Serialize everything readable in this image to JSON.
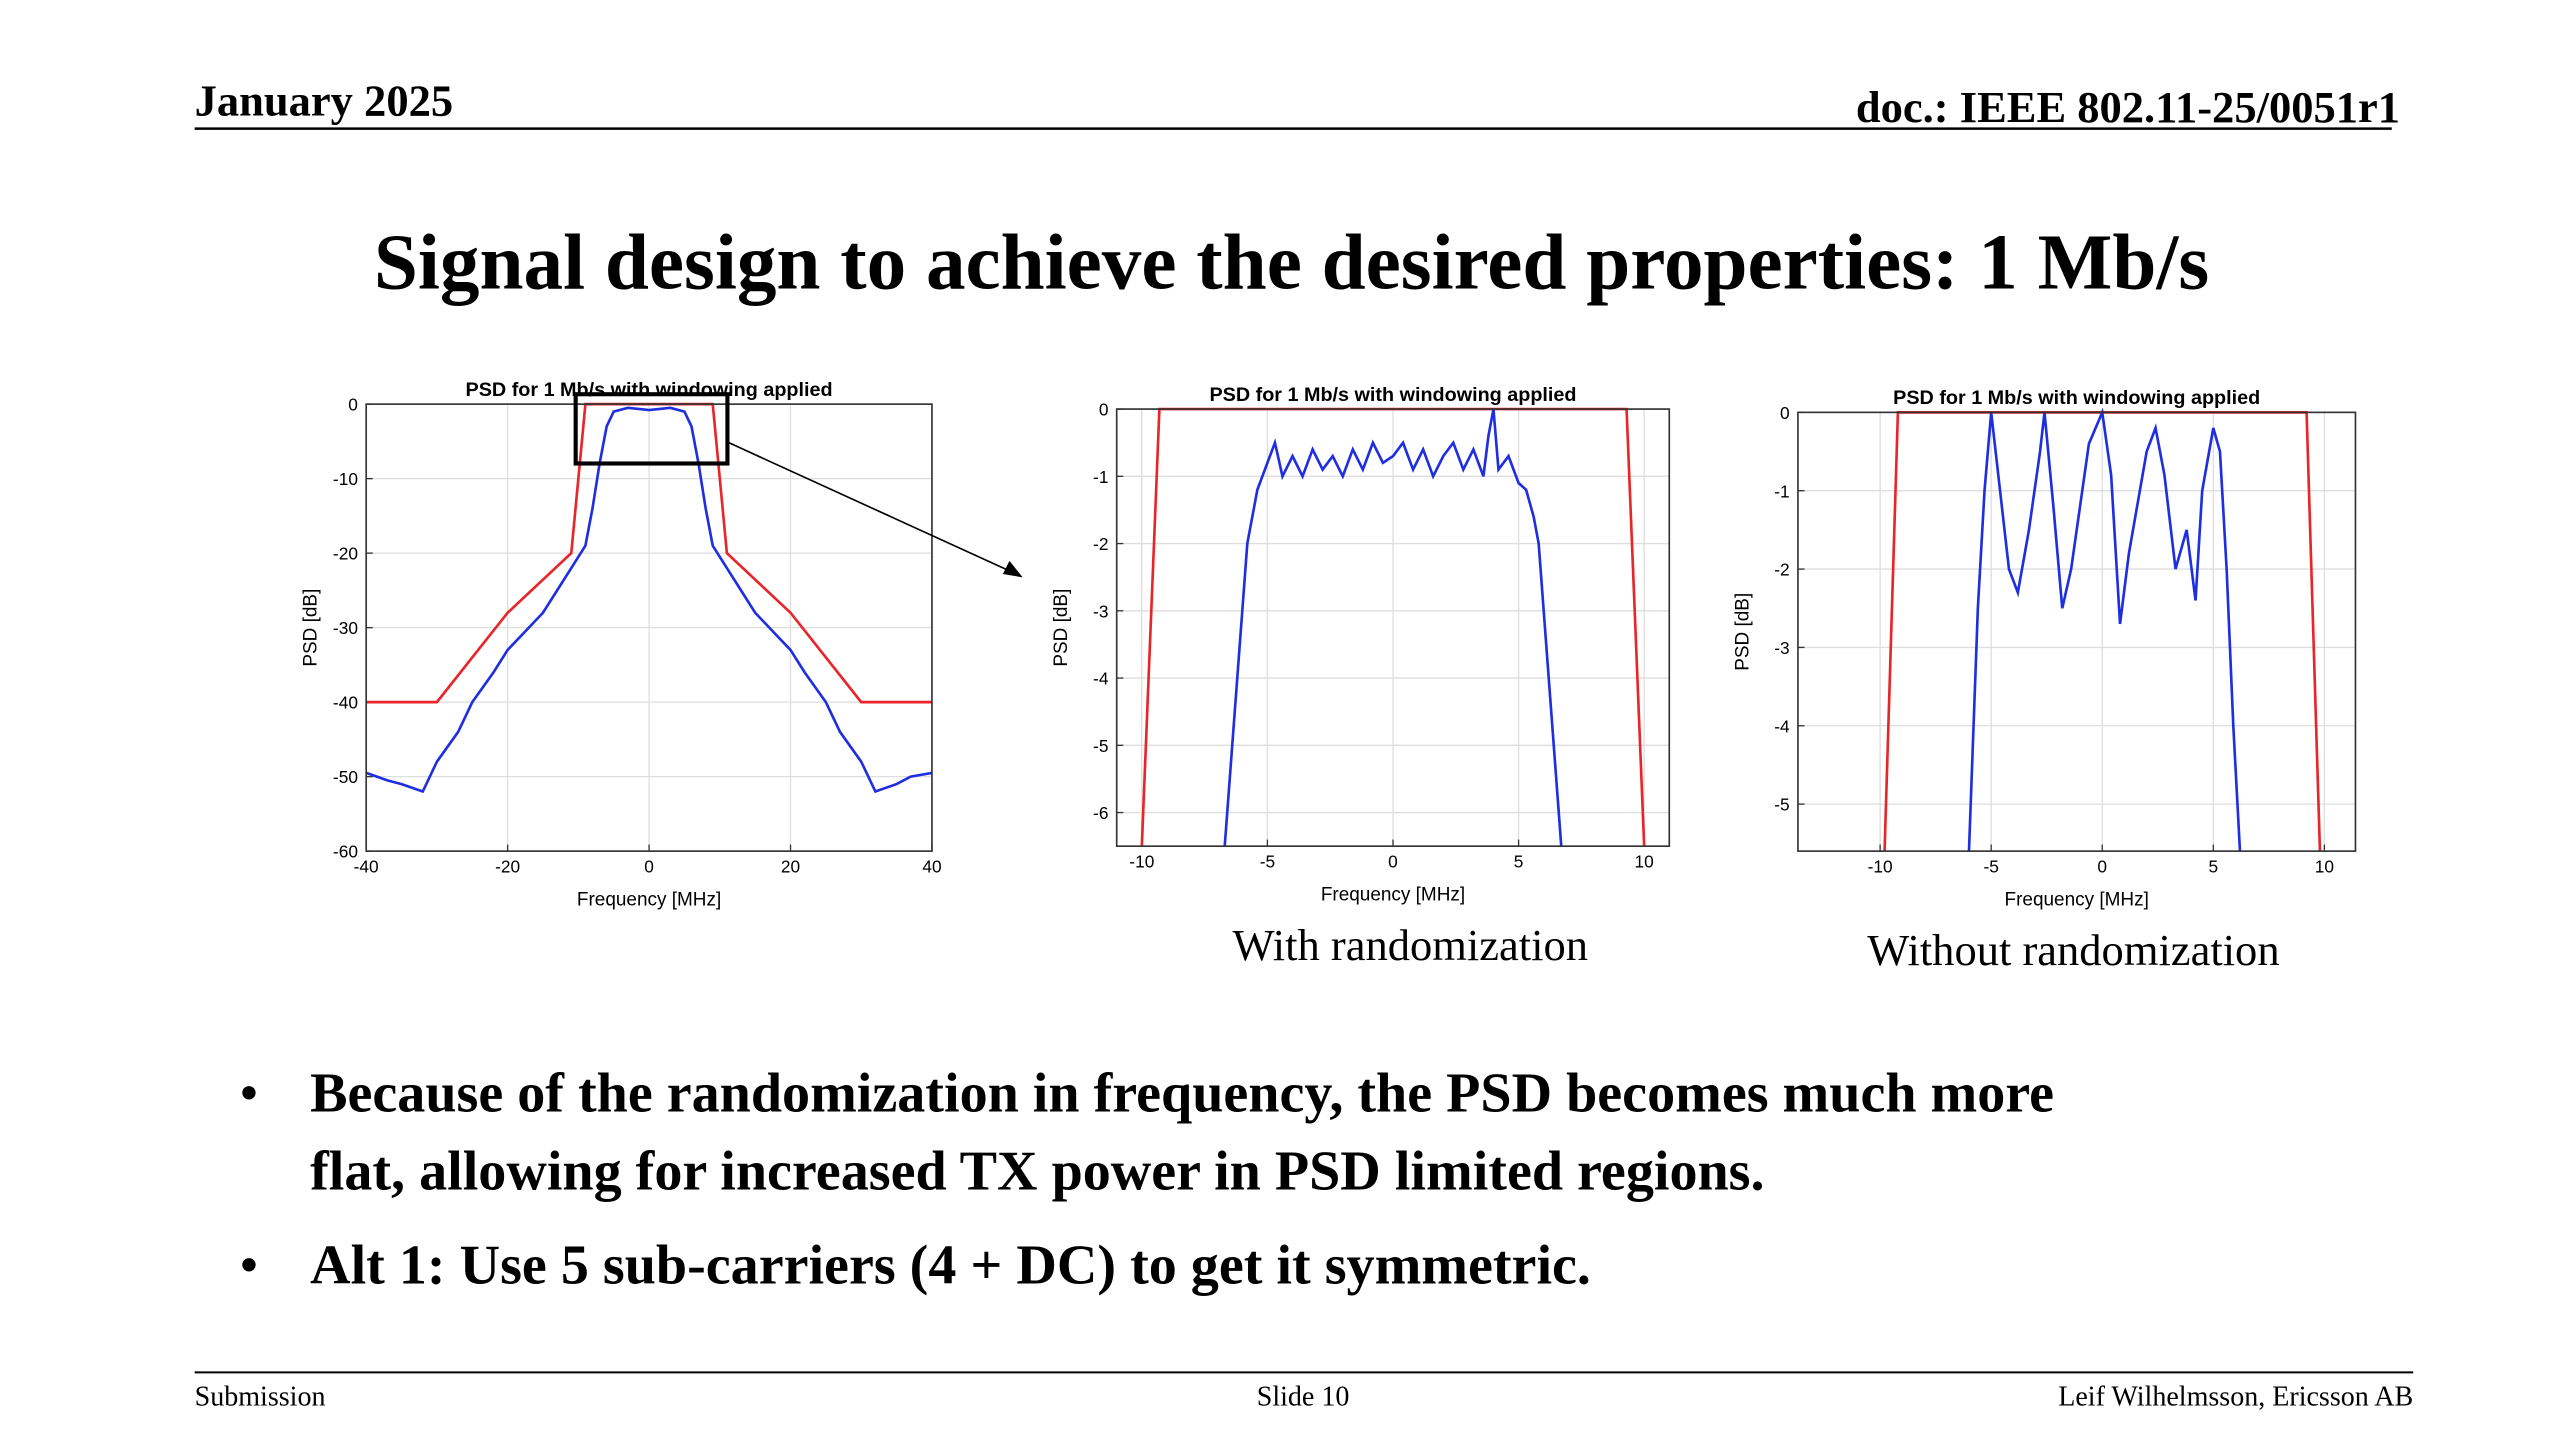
{
  "header": {
    "date": "January 2025",
    "doc": "doc.: IEEE 802.11-25/0051r1"
  },
  "title": "Signal design to achieve the desired properties: 1 Mb/s",
  "captions": [
    "With randomization",
    "Without randomization"
  ],
  "bullets": [
    [
      "Because of the randomization in frequency, the PSD becomes much more",
      "flat, allowing for increased TX power in PSD limited regions."
    ],
    [
      "Alt 1: Use 5 sub-carriers (4 + DC) to get it symmetric."
    ]
  ],
  "footer": {
    "left": "Submission",
    "center": "Slide 10",
    "right": "Leif Wilhelmsson, Ericsson AB"
  },
  "chart_data": [
    {
      "type": "line",
      "title": "PSD for 1 Mb/s with windowing applied",
      "x_label": "Frequency [MHz]",
      "y_label": "PSD [dB]",
      "xlim": [
        -40,
        40
      ],
      "ylim": [
        -60,
        0
      ],
      "xticks": [
        -40,
        -20,
        0,
        20,
        40
      ],
      "yticks": [
        -60,
        -50,
        -40,
        -30,
        -20,
        -10,
        0
      ],
      "grid": true,
      "series": [
        {
          "color": "#e8262a",
          "x": [
            -40,
            -30,
            -20,
            -11,
            -9,
            9,
            11,
            20,
            30,
            40
          ],
          "values": [
            -40,
            -40,
            -28,
            -20,
            0,
            0,
            -20,
            -28,
            -40,
            -40
          ]
        },
        {
          "color": "#1f2ee0",
          "x": [
            -40,
            -37,
            -35,
            -32,
            -30,
            -27,
            -25,
            -22,
            -20,
            -17,
            -15,
            -13,
            -11,
            -9,
            -8,
            -7,
            -6,
            -5,
            -3,
            0,
            3,
            5,
            6,
            7,
            8,
            9,
            11,
            13,
            15,
            17,
            20,
            22,
            25,
            27,
            30,
            32,
            35,
            37,
            40
          ],
          "values": [
            -49.5,
            -50.5,
            -51,
            -52,
            -48,
            -44,
            -40,
            -36,
            -33,
            -30,
            -28,
            -25,
            -22,
            -19,
            -14,
            -8,
            -3,
            -1,
            -0.5,
            -0.8,
            -0.5,
            -1,
            -3,
            -8,
            -14,
            -19,
            -22,
            -25,
            -28,
            -30,
            -33,
            -36,
            -40,
            -44,
            -48,
            -52,
            -51,
            -50,
            -49.5
          ]
        }
      ]
    },
    {
      "type": "line",
      "title": "PSD for 1 Mb/s with windowing applied",
      "x_label": "Frequency [MHz]",
      "y_label": "PSD [dB]",
      "xlim": [
        -11,
        11
      ],
      "ylim": [
        -6.5,
        0
      ],
      "xticks": [
        -10,
        -5,
        0,
        5,
        10
      ],
      "yticks": [
        -6,
        -5,
        -4,
        -3,
        -2,
        -1,
        0
      ],
      "grid": true,
      "series": [
        {
          "color": "#e8262a",
          "x": [
            -10,
            -9.3,
            9.3,
            10
          ],
          "values": [
            -6.5,
            0,
            0,
            -6.5
          ]
        },
        {
          "color": "#1f2ee0",
          "x": [
            -6.7,
            -6.4,
            -6.2,
            -6,
            -5.8,
            -5.6,
            -5.4,
            -5.2,
            -5,
            -4.7,
            -4.4,
            -4,
            -3.6,
            -3.2,
            -2.8,
            -2.4,
            -2,
            -1.6,
            -1.2,
            -0.8,
            -0.4,
            0,
            0.4,
            0.8,
            1.2,
            1.6,
            2,
            2.4,
            2.8,
            3.2,
            3.6,
            3.8,
            4,
            4.2,
            4.6,
            5,
            5.3,
            5.6,
            5.8,
            6,
            6.2,
            6.4,
            6.7
          ],
          "values": [
            -6.5,
            -5,
            -4,
            -3,
            -2,
            -1.6,
            -1.2,
            -1,
            -0.8,
            -0.5,
            -1,
            -0.7,
            -1,
            -0.6,
            -0.9,
            -0.7,
            -1,
            -0.6,
            -0.9,
            -0.5,
            -0.8,
            -0.7,
            -0.5,
            -0.9,
            -0.6,
            -1,
            -0.7,
            -0.5,
            -0.9,
            -0.6,
            -1,
            -0.4,
            0,
            -0.9,
            -0.7,
            -1.1,
            -1.2,
            -1.6,
            -2,
            -3,
            -4,
            -5,
            -6.5
          ]
        }
      ]
    },
    {
      "type": "line",
      "title": "PSD for 1 Mb/s with windowing applied",
      "x_label": "Frequency [MHz]",
      "y_label": "PSD [dB]",
      "xlim": [
        -13.7,
        11.4
      ],
      "ylim": [
        -5.6,
        0
      ],
      "xticks": [
        -10,
        -5,
        0,
        5,
        10
      ],
      "yticks": [
        -5,
        -4,
        -3,
        -2,
        -1,
        0
      ],
      "grid": true,
      "series": [
        {
          "color": "#e8262a",
          "x": [
            -9.8,
            -9.2,
            9.2,
            9.8
          ],
          "values": [
            -5.6,
            0,
            0,
            -5.6
          ]
        },
        {
          "color": "#1f2ee0",
          "x": [
            -6,
            -5.6,
            -5.3,
            -5,
            -4.6,
            -4.2,
            -3.8,
            -3.3,
            -2.8,
            -2.6,
            -2.2,
            -1.8,
            -1.4,
            -0.6,
            0,
            0.4,
            0.8,
            1.2,
            2,
            2.4,
            2.8,
            3.3,
            3.8,
            4.2,
            4.5,
            5,
            5.3,
            5.6,
            5.9,
            6.2
          ],
          "values": [
            -5.6,
            -2.5,
            -1,
            0,
            -1,
            -2,
            -2.3,
            -1.5,
            -0.5,
            0,
            -1.2,
            -2.5,
            -2,
            -0.4,
            0,
            -0.8,
            -2.7,
            -1.8,
            -0.5,
            -0.2,
            -0.8,
            -2,
            -1.5,
            -2.4,
            -1,
            -0.2,
            -0.5,
            -2,
            -4,
            -5.6
          ]
        }
      ]
    }
  ]
}
